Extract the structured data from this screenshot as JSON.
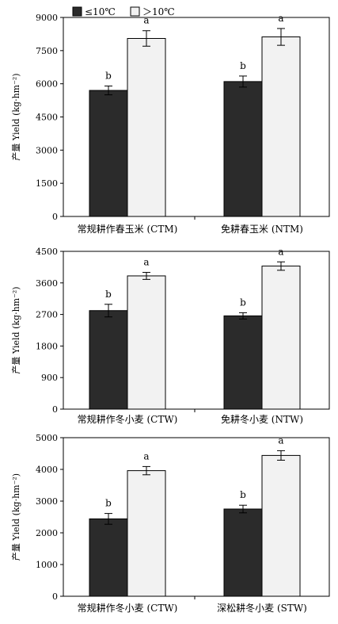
{
  "legend": [
    {
      "label": "≤10℃",
      "color": "#2b2b2b"
    },
    {
      "label": "＞10℃",
      "color": "#f2f2f2"
    }
  ],
  "chart_data": [
    {
      "type": "bar",
      "ylabel": "产量 Yield (kg·hm⁻²)",
      "ylim": [
        0,
        9000
      ],
      "yticks": [
        0,
        1500,
        3000,
        4500,
        6000,
        7500,
        9000
      ],
      "categories": [
        "常规耕作春玉米 (CTM)",
        "免耕春玉米 (NTM)"
      ],
      "series": [
        {
          "name": "≤10℃",
          "values": [
            5700,
            6100
          ],
          "errors": [
            200,
            250
          ],
          "labels": [
            "b",
            "b"
          ]
        },
        {
          "name": "＞10℃",
          "values": [
            8050,
            8120
          ],
          "errors": [
            350,
            380
          ],
          "labels": [
            "a",
            "a"
          ]
        }
      ]
    },
    {
      "type": "bar",
      "ylabel": "产量 Yield (kg·hm⁻²)",
      "ylim": [
        0,
        4500
      ],
      "yticks": [
        0,
        900,
        1800,
        2700,
        3600,
        4500
      ],
      "categories": [
        "常规耕作冬小麦 (CTW)",
        "免耕冬小麦 (NTW)"
      ],
      "series": [
        {
          "name": "≤10℃",
          "values": [
            2810,
            2660
          ],
          "errors": [
            180,
            90
          ],
          "labels": [
            "b",
            "b"
          ]
        },
        {
          "name": "＞10℃",
          "values": [
            3800,
            4080
          ],
          "errors": [
            100,
            120
          ],
          "labels": [
            "a",
            "a"
          ]
        }
      ]
    },
    {
      "type": "bar",
      "ylabel": "产量 Yield (kg·hm⁻²)",
      "ylim": [
        0,
        5000
      ],
      "yticks": [
        0,
        1000,
        2000,
        3000,
        4000,
        5000
      ],
      "categories": [
        "常规耕作冬小麦 (CTW)",
        "深松耕冬小麦 (STW)"
      ],
      "series": [
        {
          "name": "≤10℃",
          "values": [
            2440,
            2750
          ],
          "errors": [
            170,
            120
          ],
          "labels": [
            "b",
            "b"
          ]
        },
        {
          "name": "＞10℃",
          "values": [
            3960,
            4440
          ],
          "errors": [
            130,
            150
          ],
          "labels": [
            "a",
            "a"
          ]
        }
      ]
    }
  ]
}
